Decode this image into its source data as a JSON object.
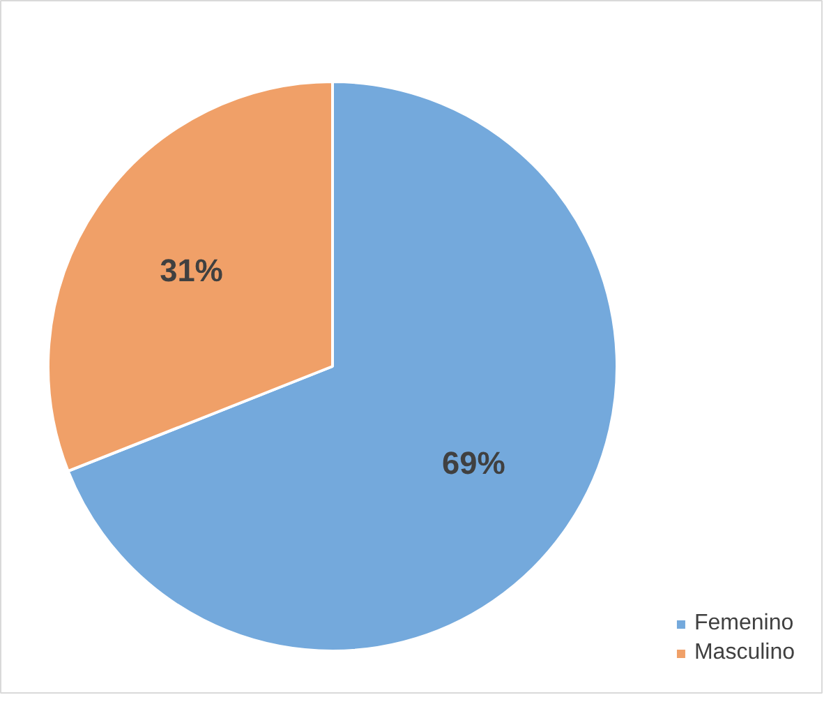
{
  "chart_data": {
    "type": "pie",
    "categories": [
      "Femenino",
      "Masculino"
    ],
    "values": [
      69,
      31
    ],
    "colors": [
      "#74a9dc",
      "#f0a068"
    ],
    "value_labels": [
      "69%",
      "31%"
    ],
    "legend": "bottom right"
  }
}
